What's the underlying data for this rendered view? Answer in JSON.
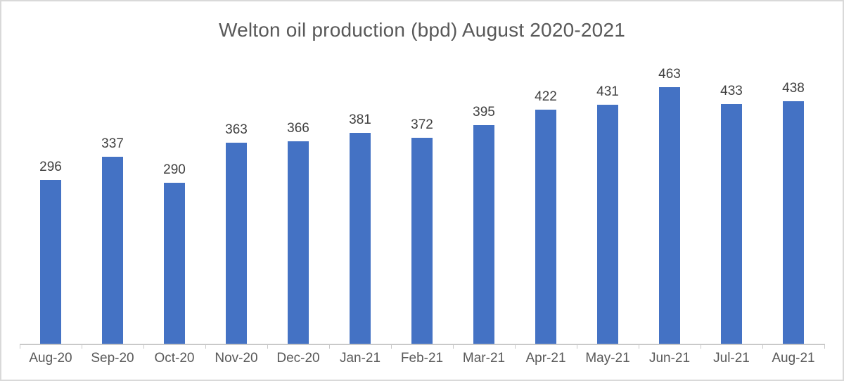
{
  "chart_data": {
    "type": "bar",
    "title": "Welton oil production (bpd) August 2020-2021",
    "categories": [
      "Aug-20",
      "Sep-20",
      "Oct-20",
      "Nov-20",
      "Dec-20",
      "Jan-21",
      "Feb-21",
      "Mar-21",
      "Apr-21",
      "May-21",
      "Jun-21",
      "Jul-21",
      "Aug-21"
    ],
    "values": [
      296,
      337,
      290,
      363,
      366,
      381,
      372,
      395,
      422,
      431,
      463,
      433,
      438
    ],
    "xlabel": "",
    "ylabel": "",
    "ylim": [
      0,
      500
    ],
    "grid": false,
    "legend_position": "none",
    "data_labels_shown": true,
    "colors": {
      "bar_fill": "#4472C4",
      "data_label_text": "#404040",
      "axis_label_text": "#595959",
      "title_text": "#595959",
      "axis_line": "#c9c9c9",
      "background": "#ffffff",
      "frame_border": "#d9d9d9"
    }
  }
}
